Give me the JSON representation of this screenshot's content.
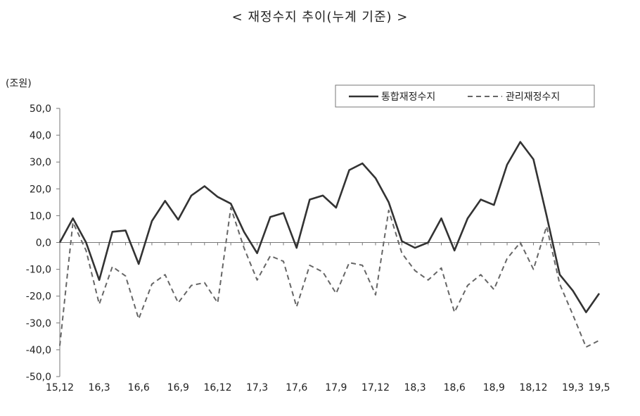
{
  "chart_data": {
    "type": "line",
    "title": "< 재정수지 추이(누계 기준) >",
    "unit": "(조원)",
    "ylim": [
      -50,
      50
    ],
    "y_ticks": [
      "50,0",
      "40,0",
      "30,0",
      "20,0",
      "10,0",
      "0,0",
      "-10,0",
      "-20,0",
      "-30,0",
      "-40,0",
      "-50,0"
    ],
    "x_tick_labels": [
      "15,12",
      "16,3",
      "16,6",
      "16,9",
      "16,12",
      "17,3",
      "17,6",
      "17,9",
      "17,12",
      "18,3",
      "18,6",
      "18,9",
      "18,12",
      "19,3",
      "19,5"
    ],
    "legend_position": "top-right",
    "grid": false,
    "series": [
      {
        "name": "통합재정수지",
        "style": "solid",
        "color": "#333333",
        "values": [
          0,
          9,
          0,
          -14,
          4,
          4.5,
          -8,
          8,
          15.5,
          8.5,
          17.5,
          21,
          17,
          14.5,
          4,
          -4,
          9.5,
          11,
          -2,
          16,
          17.5,
          13,
          27,
          29.5,
          24,
          15,
          0.5,
          -2,
          0,
          9,
          -3,
          9,
          16,
          14,
          29,
          37.5,
          31,
          10,
          -12,
          -18,
          -26,
          -19
        ]
      },
      {
        "name": "관리재정수지",
        "style": "dashed",
        "color": "#666666",
        "values": [
          -38.5,
          7.5,
          -3,
          -23,
          -9,
          -12.5,
          -28.5,
          -15.5,
          -12,
          -22.5,
          -16,
          -15,
          -22.5,
          13,
          -2,
          -14,
          -5,
          -7,
          -24,
          -8.5,
          -11,
          -19,
          -7.5,
          -8.5,
          -19.5,
          12,
          -4,
          -10.5,
          -14,
          -9.5,
          -26,
          -16,
          -12,
          -17.5,
          -6,
          0,
          -10,
          6,
          -15.5,
          -27,
          -39,
          -36.5
        ]
      }
    ]
  }
}
